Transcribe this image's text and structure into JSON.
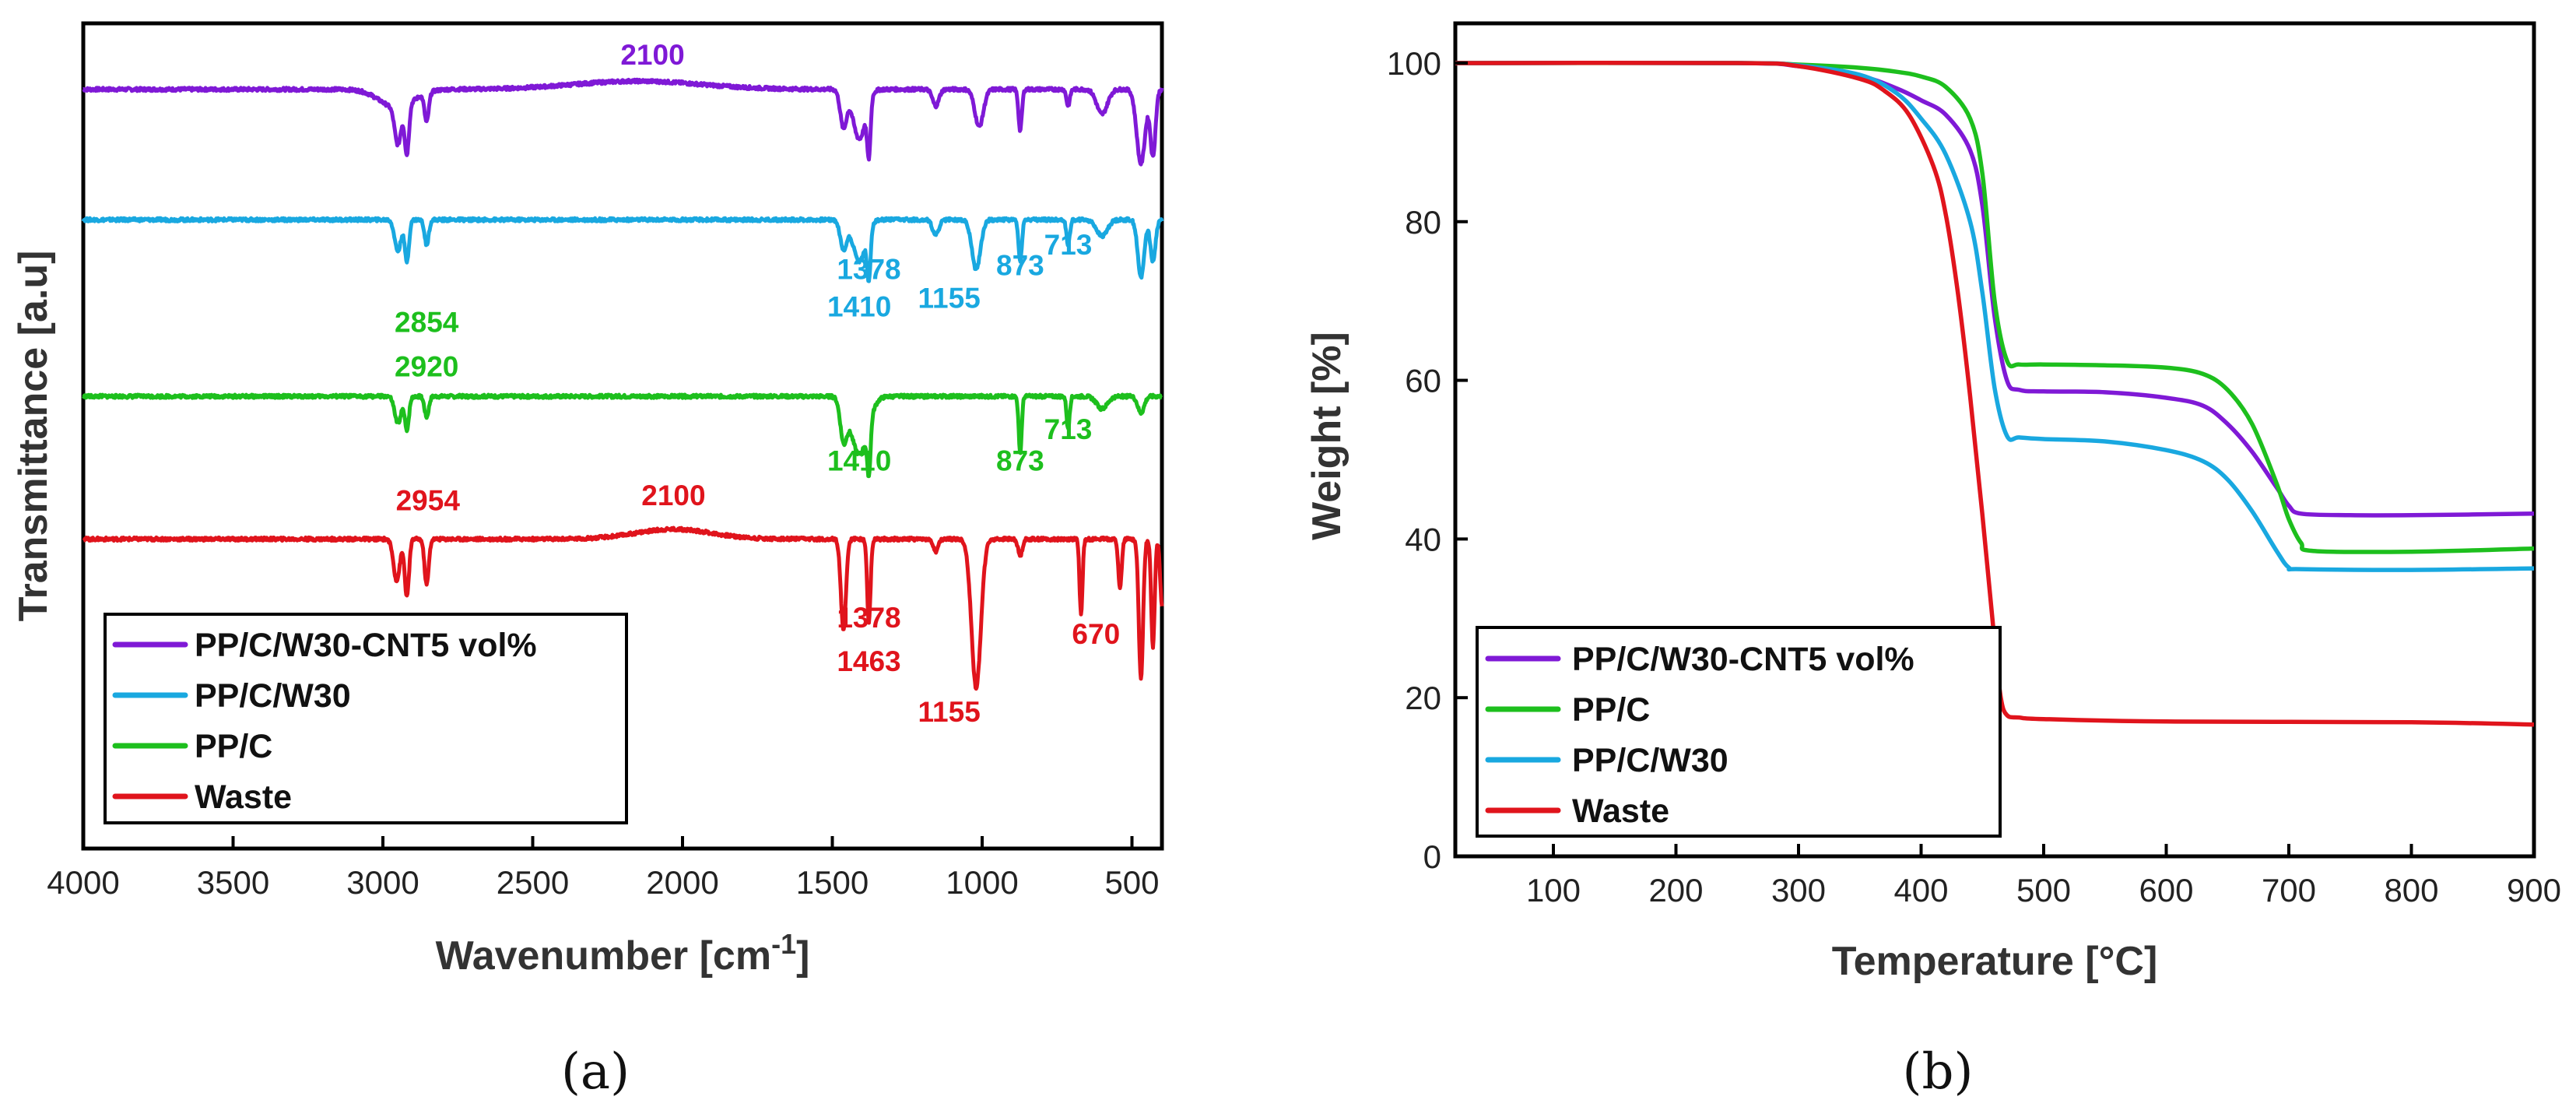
{
  "chart_data": [
    {
      "panel": "a",
      "type": "line",
      "caption": "(a)",
      "xlabel": "Wavenumber [cm",
      "xlabel_sup": "-1",
      "xlabel_end": "]",
      "ylabel": "Transmittance [a.u]",
      "xlim": [
        4000,
        400
      ],
      "ylim": [
        0,
        1
      ],
      "xticks": [
        4000,
        3500,
        3000,
        2500,
        2000,
        1500,
        1000,
        500
      ],
      "legend": [
        "PP/C/W30-CNT5 vol%",
        "PP/C/W30",
        "PP/C",
        "Waste"
      ],
      "colors": {
        "PP/C/W30-CNT5 vol%": "#7F19D6",
        "PP/C/W30": "#19A8E0",
        "PP/C": "#1DBF1D",
        "Waste": "#E0141C"
      },
      "series": [
        {
          "name": "PP/C/W30-CNT5 vol%",
          "baseline": 0.92,
          "extras": [
            [
              2954,
              -0.022,
              80
            ],
            [
              2150,
              0.01,
              300
            ]
          ],
          "bands": [
            [
              2950,
              0.045,
              15
            ],
            [
              2920,
              0.06,
              10
            ],
            [
              2854,
              0.035,
              10
            ],
            [
              1463,
              0.045,
              15
            ],
            [
              1410,
              0.06,
              30
            ],
            [
              1378,
              0.065,
              8
            ],
            [
              1155,
              0.02,
              15
            ],
            [
              1010,
              0.045,
              20
            ],
            [
              873,
              0.05,
              8
            ],
            [
              713,
              0.02,
              8
            ],
            [
              600,
              0.03,
              25
            ],
            [
              470,
              0.09,
              20
            ],
            [
              430,
              0.08,
              12
            ]
          ]
        },
        {
          "name": "PP/C/W30",
          "baseline": 0.762,
          "extras": [],
          "bands": [
            [
              2950,
              0.038,
              15
            ],
            [
              2920,
              0.05,
              10
            ],
            [
              2854,
              0.03,
              10
            ],
            [
              1463,
              0.035,
              15
            ],
            [
              1410,
              0.05,
              30
            ],
            [
              1378,
              0.06,
              8
            ],
            [
              1155,
              0.018,
              15
            ],
            [
              1020,
              0.06,
              20
            ],
            [
              873,
              0.05,
              8
            ],
            [
              713,
              0.03,
              8
            ],
            [
              600,
              0.02,
              25
            ],
            [
              470,
              0.07,
              15
            ],
            [
              430,
              0.05,
              12
            ]
          ]
        },
        {
          "name": "PP/C",
          "baseline": 0.548,
          "extras": [],
          "bands": [
            [
              2950,
              0.033,
              15
            ],
            [
              2920,
              0.04,
              10
            ],
            [
              2854,
              0.025,
              10
            ],
            [
              1463,
              0.045,
              15
            ],
            [
              1410,
              0.07,
              40
            ],
            [
              1378,
              0.06,
              8
            ],
            [
              873,
              0.07,
              7
            ],
            [
              713,
              0.04,
              7
            ],
            [
              600,
              0.015,
              25
            ],
            [
              470,
              0.02,
              15
            ]
          ]
        },
        {
          "name": "Waste",
          "baseline": 0.375,
          "extras": [
            [
              2030,
              0.012,
              180
            ]
          ],
          "bands": [
            [
              2954,
              0.05,
              15
            ],
            [
              2920,
              0.07,
              10
            ],
            [
              2854,
              0.055,
              10
            ],
            [
              1463,
              0.11,
              12
            ],
            [
              1378,
              0.1,
              8
            ],
            [
              1155,
              0.015,
              12
            ],
            [
              1020,
              0.18,
              22
            ],
            [
              873,
              0.02,
              10
            ],
            [
              670,
              0.09,
              7
            ],
            [
              540,
              0.06,
              8
            ],
            [
              470,
              0.17,
              10
            ],
            [
              430,
              0.13,
              8
            ],
            [
              400,
              0.08,
              8
            ]
          ]
        }
      ],
      "annotations": [
        {
          "text": "2100",
          "x": 2100,
          "y": 0.95,
          "series": "PP/C/W30-CNT5 vol%"
        },
        {
          "text": "1378",
          "x": 1378,
          "y": 0.69,
          "series": "PP/C/W30"
        },
        {
          "text": "1410",
          "x": 1410,
          "y": 0.645,
          "series": "PP/C/W30"
        },
        {
          "text": "1155",
          "x": 1110,
          "y": 0.655,
          "series": "PP/C/W30"
        },
        {
          "text": "873",
          "x": 873,
          "y": 0.695,
          "series": "PP/C/W30"
        },
        {
          "text": "713",
          "x": 713,
          "y": 0.72,
          "series": "PP/C/W30"
        },
        {
          "text": "2854",
          "x": 2854,
          "y": 0.626,
          "series": "PP/C"
        },
        {
          "text": "2920",
          "x": 2854,
          "y": 0.572,
          "series": "PP/C"
        },
        {
          "text": "1410",
          "x": 1410,
          "y": 0.458,
          "series": "PP/C"
        },
        {
          "text": "713",
          "x": 713,
          "y": 0.496,
          "series": "PP/C"
        },
        {
          "text": "873",
          "x": 873,
          "y": 0.458,
          "series": "PP/C"
        },
        {
          "text": "2954",
          "x": 2850,
          "y": 0.41,
          "series": "Waste"
        },
        {
          "text": "2100",
          "x": 2030,
          "y": 0.416,
          "series": "Waste"
        },
        {
          "text": "1378",
          "x": 1378,
          "y": 0.268,
          "series": "Waste"
        },
        {
          "text": "1463",
          "x": 1378,
          "y": 0.215,
          "series": "Waste"
        },
        {
          "text": "670",
          "x": 620,
          "y": 0.248,
          "series": "Waste"
        },
        {
          "text": "1155",
          "x": 1110,
          "y": 0.154,
          "series": "Waste"
        }
      ]
    },
    {
      "panel": "b",
      "type": "line",
      "caption": "(b)",
      "xlabel": "Temperature [°C]",
      "ylabel": "Weight [%]",
      "xlim": [
        20,
        900
      ],
      "ylim": [
        0,
        105
      ],
      "xticks": [
        100,
        200,
        300,
        400,
        500,
        600,
        700,
        800,
        900
      ],
      "yticks": [
        0,
        20,
        40,
        60,
        80,
        100
      ],
      "legend": [
        "PP/C/W30-CNT5 vol%",
        "PP/C",
        "PP/C/W30",
        "Waste"
      ],
      "colors": {
        "PP/C/W30-CNT5 vol%": "#7F19D6",
        "PP/C": "#1DBF1D",
        "PP/C/W30": "#19A8E0",
        "Waste": "#E0141C"
      },
      "series": [
        {
          "name": "PP/C/W30-CNT5 vol%",
          "x": [
            20,
            250,
            300,
            350,
            380,
            400,
            420,
            440,
            450,
            460,
            470,
            480,
            500,
            550,
            600,
            630,
            650,
            670,
            690,
            700,
            710,
            750,
            800,
            900
          ],
          "y": [
            100,
            100,
            99.6,
            98.4,
            96.8,
            95.3,
            93.5,
            89,
            82,
            68,
            60,
            58.8,
            58.6,
            58.5,
            57.8,
            56.8,
            54.5,
            51,
            46.5,
            44.2,
            43.2,
            43,
            43,
            43.2
          ]
        },
        {
          "name": "PP/C",
          "x": [
            20,
            250,
            300,
            350,
            380,
            400,
            420,
            440,
            450,
            460,
            470,
            480,
            500,
            550,
            600,
            630,
            650,
            670,
            690,
            700,
            710,
            720,
            800,
            900
          ],
          "y": [
            100,
            100,
            99.8,
            99.4,
            98.9,
            98.3,
            97,
            93,
            86,
            70,
            62.5,
            62,
            62,
            61.9,
            61.6,
            60.8,
            58.8,
            54.5,
            47,
            42.5,
            39.5,
            38.5,
            38.4,
            38.8
          ]
        },
        {
          "name": "PP/C/W30",
          "x": [
            20,
            250,
            300,
            350,
            380,
            400,
            420,
            440,
            450,
            460,
            470,
            480,
            500,
            550,
            600,
            630,
            650,
            670,
            690,
            700,
            710,
            800,
            900
          ],
          "y": [
            100,
            100,
            99.7,
            98.5,
            96.2,
            93,
            88.5,
            80,
            71,
            59,
            53,
            52.8,
            52.6,
            52.3,
            51.2,
            49.8,
            47.5,
            43.5,
            38.5,
            36.4,
            36.2,
            36.1,
            36.3
          ]
        },
        {
          "name": "Waste",
          "x": [
            20,
            250,
            300,
            350,
            370,
            390,
            410,
            420,
            430,
            440,
            450,
            460,
            465,
            470,
            480,
            500,
            600,
            800,
            900
          ],
          "y": [
            100,
            100,
            99.6,
            98,
            96.5,
            93.5,
            87,
            81,
            71,
            58,
            43,
            27,
            20,
            17.8,
            17.5,
            17.3,
            17,
            16.9,
            16.6
          ]
        }
      ]
    }
  ]
}
